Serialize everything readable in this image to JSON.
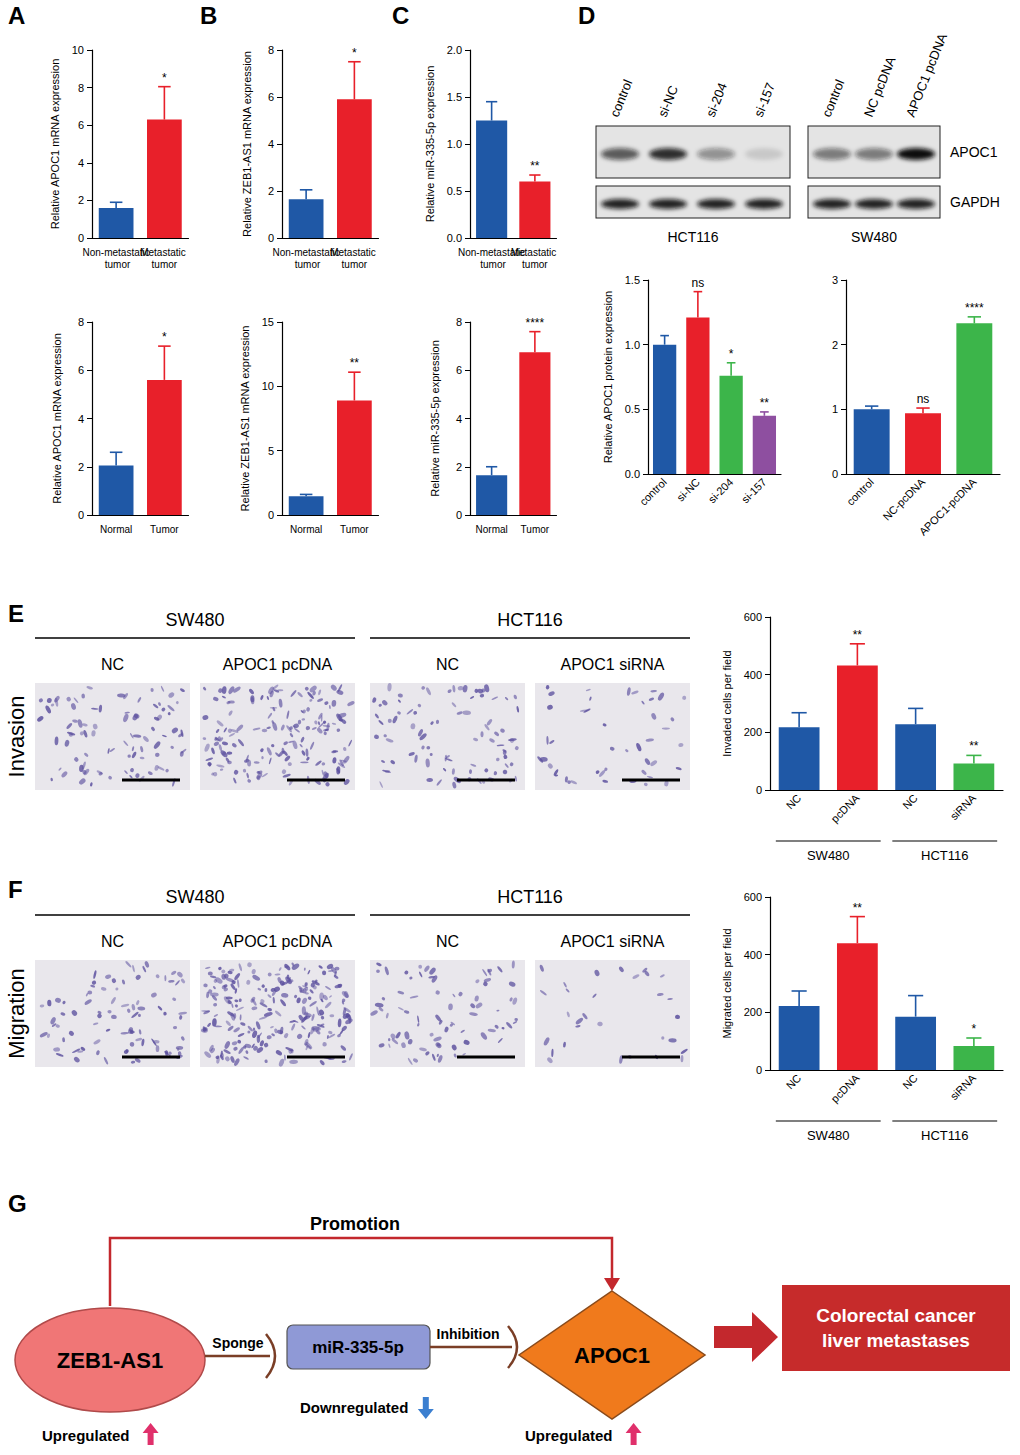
{
  "panel_letters": [
    "A",
    "B",
    "C",
    "D",
    "E",
    "F",
    "G"
  ],
  "chart_data": [
    {
      "type": "bar",
      "ylabel": "Relative APOC1 mRNA expression",
      "categories": [
        "Non-metastatic tumor",
        "Metastatic tumor"
      ],
      "values": [
        1.6,
        6.3
      ],
      "error": [
        0.3,
        1.75
      ],
      "annotations": [
        null,
        "*"
      ],
      "colors": [
        "#1f58a6",
        "#e8202a"
      ],
      "ylim": [
        0,
        10
      ],
      "yticks": [
        0,
        2,
        4,
        6,
        8,
        10
      ]
    },
    {
      "type": "bar",
      "ylabel": "Relative APOC1 mRNA expression",
      "categories": [
        "Normal",
        "Tumor"
      ],
      "values": [
        2.05,
        5.6
      ],
      "error": [
        0.55,
        1.4
      ],
      "annotations": [
        null,
        "*"
      ],
      "colors": [
        "#1f58a6",
        "#e8202a"
      ],
      "ylim": [
        0,
        8
      ],
      "yticks": [
        0,
        2,
        4,
        6,
        8
      ]
    },
    {
      "type": "bar",
      "ylabel": "Relative ZEB1-AS1 mRNA expression",
      "categories": [
        "Non-metastatic tumor",
        "Metastatic tumor"
      ],
      "values": [
        1.65,
        5.9
      ],
      "error": [
        0.4,
        1.6
      ],
      "annotations": [
        null,
        "*"
      ],
      "colors": [
        "#1f58a6",
        "#e8202a"
      ],
      "ylim": [
        0,
        8
      ],
      "yticks": [
        0,
        2,
        4,
        6,
        8
      ]
    },
    {
      "type": "bar",
      "ylabel": "Relative ZEB1-AS1 mRNA expression",
      "categories": [
        "Normal",
        "Tumor"
      ],
      "values": [
        1.45,
        8.9
      ],
      "error": [
        0.15,
        2.2
      ],
      "annotations": [
        null,
        "**"
      ],
      "colors": [
        "#1f58a6",
        "#e8202a"
      ],
      "ylim": [
        0,
        15
      ],
      "yticks": [
        0,
        5,
        10,
        15
      ]
    },
    {
      "type": "bar",
      "ylabel": "Relative miR-335-5p expression",
      "categories": [
        "Non-metastatic tumor",
        "Metastatic tumor"
      ],
      "values": [
        1.25,
        0.6
      ],
      "error": [
        0.2,
        0.07
      ],
      "annotations": [
        null,
        "**"
      ],
      "colors": [
        "#1f58a6",
        "#e8202a"
      ],
      "ylim": [
        0,
        2
      ],
      "yticks": [
        {
          "value": 0,
          "label": "0.0"
        },
        0.5,
        {
          "value": 1,
          "label": "1.0"
        },
        1.5,
        {
          "value": 2,
          "label": "2.0"
        }
      ]
    },
    {
      "type": "bar",
      "ylabel": "Relative miR-335-5p expression",
      "categories": [
        "Normal",
        "Tumor"
      ],
      "values": [
        1.65,
        6.75
      ],
      "error": [
        0.35,
        0.85
      ],
      "annotations": [
        null,
        "****"
      ],
      "colors": [
        "#1f58a6",
        "#e8202a"
      ],
      "ylim": [
        0,
        8
      ],
      "yticks": [
        0,
        2,
        4,
        6,
        8
      ]
    },
    {
      "type": "bar",
      "ylabel": "Relative APOC1 protein expression",
      "categories": [
        "control",
        "si-NC",
        "si-204",
        "si-157"
      ],
      "values": [
        1.0,
        1.21,
        0.76,
        0.45
      ],
      "error": [
        0.07,
        0.2,
        0.1,
        0.03
      ],
      "annotations": [
        null,
        "ns",
        "*",
        "**"
      ],
      "colors": [
        "#1f58a6",
        "#e8202a",
        "#3cb54a",
        "#8e4fa0"
      ],
      "ylim": [
        0,
        1.5
      ],
      "yticks": [
        {
          "value": 0,
          "label": "0.0"
        },
        0.5,
        {
          "value": 1,
          "label": "1.0"
        },
        1.5
      ]
    },
    {
      "type": "bar",
      "categories": [
        "control",
        "NC-pcDNA",
        "APOC1-pcDNA"
      ],
      "values": [
        1.0,
        0.94,
        2.33
      ],
      "error": [
        0.05,
        0.08,
        0.1
      ],
      "annotations": [
        null,
        "ns",
        "****"
      ],
      "colors": [
        "#1f58a6",
        "#e8202a",
        "#3cb54a"
      ],
      "ylim": [
        0,
        3
      ],
      "yticks": [
        0,
        1,
        2,
        3
      ]
    },
    {
      "type": "bar",
      "ylabel": "Invaded cells per field",
      "categories": [
        "NC",
        "pcDNA",
        "NC",
        "siRNA"
      ],
      "groups": [
        "SW480",
        "HCT116"
      ],
      "values": [
        218,
        432,
        228,
        92
      ],
      "error": [
        50,
        75,
        55,
        28
      ],
      "annotations": [
        null,
        "**",
        null,
        "**"
      ],
      "colors": [
        "#1f58a6",
        "#e8202a",
        "#1f58a6",
        "#3cb54a"
      ],
      "ylim": [
        0,
        600
      ],
      "yticks": [
        0,
        200,
        400,
        600
      ]
    },
    {
      "type": "bar",
      "ylabel": "Migrated cells per field",
      "categories": [
        "NC",
        "pcDNA",
        "NC",
        "siRNA"
      ],
      "groups": [
        "SW480",
        "HCT116"
      ],
      "values": [
        222,
        440,
        185,
        83
      ],
      "error": [
        52,
        92,
        73,
        28
      ],
      "annotations": [
        null,
        "**",
        null,
        "*"
      ],
      "colors": [
        "#1f58a6",
        "#e8202a",
        "#1f58a6",
        "#3cb54a"
      ],
      "ylim": [
        0,
        600
      ],
      "yticks": [
        0,
        200,
        400,
        600
      ]
    }
  ],
  "blots": {
    "rows": [
      "APOC1",
      "GAPDH"
    ],
    "panels": [
      {
        "lanes": [
          "control",
          "si-NC",
          "si-204",
          "si-157"
        ],
        "cell_line": "HCT116"
      },
      {
        "lanes": [
          "control",
          "NC pcDNA",
          "APOC1 pcDNA"
        ],
        "cell_line": "SW480"
      }
    ]
  },
  "micrographs": [
    {
      "row": "Invasion",
      "groups": [
        {
          "cell_line": "SW480",
          "conditions": [
            "NC",
            "APOC1 pcDNA"
          ]
        },
        {
          "cell_line": "HCT116",
          "conditions": [
            "NC",
            "APOC1 siRNA"
          ]
        }
      ]
    },
    {
      "row": "Migration",
      "groups": [
        {
          "cell_line": "SW480",
          "conditions": [
            "NC",
            "APOC1 pcDNA"
          ]
        },
        {
          "cell_line": "HCT116",
          "conditions": [
            "NC",
            "APOC1 siRNA"
          ]
        }
      ]
    }
  ],
  "diagram": {
    "source": {
      "label": "ZEB1-AS1",
      "status": "Upregulated"
    },
    "sponge": "Sponge",
    "mirna": {
      "label": "miR-335-5p",
      "status": "Downregulated"
    },
    "inhibition": "Inhibition",
    "target": {
      "label": "APOC1",
      "status": "Upregulated"
    },
    "promotion": "Promotion",
    "outcome": "Colorectal cancer liver metastases"
  }
}
